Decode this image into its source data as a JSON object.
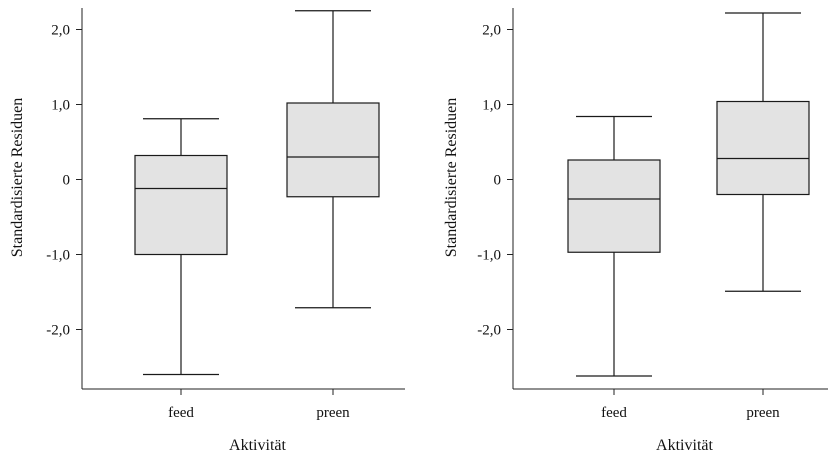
{
  "chart_data": [
    {
      "type": "boxplot",
      "xlabel": "Aktivität",
      "ylabel": "Standardisierte Residuen",
      "categories": [
        "feed",
        "preen"
      ],
      "yticks": [
        2.0,
        1.0,
        0,
        -1.0,
        -2.0
      ],
      "ytick_labels": [
        "2,0",
        "1,0",
        "0",
        "-1,0",
        "-2,0"
      ],
      "ylim": [
        -2.8,
        2.3
      ],
      "box_color": "#e3e3e3",
      "boxes": [
        {
          "category": "feed",
          "min": -2.6,
          "q1": -1.0,
          "median": -0.12,
          "q3": 0.32,
          "max": 0.81
        },
        {
          "category": "preen",
          "min": -1.71,
          "q1": -0.23,
          "median": 0.3,
          "q3": 1.02,
          "max": 2.25
        }
      ]
    },
    {
      "type": "boxplot",
      "xlabel": "Aktivität",
      "ylabel": "Standardisierte Residuen",
      "categories": [
        "feed",
        "preen"
      ],
      "yticks": [
        2.0,
        1.0,
        0,
        -1.0,
        -2.0
      ],
      "ytick_labels": [
        "2,0",
        "1,0",
        "0",
        "-1,0",
        "-2,0"
      ],
      "ylim": [
        -2.8,
        2.3
      ],
      "box_color": "#e3e3e3",
      "boxes": [
        {
          "category": "feed",
          "min": -2.62,
          "q1": -0.97,
          "median": -0.26,
          "q3": 0.26,
          "max": 0.84
        },
        {
          "category": "preen",
          "min": -1.49,
          "q1": -0.2,
          "median": 0.28,
          "q3": 1.04,
          "max": 2.22
        }
      ]
    }
  ]
}
